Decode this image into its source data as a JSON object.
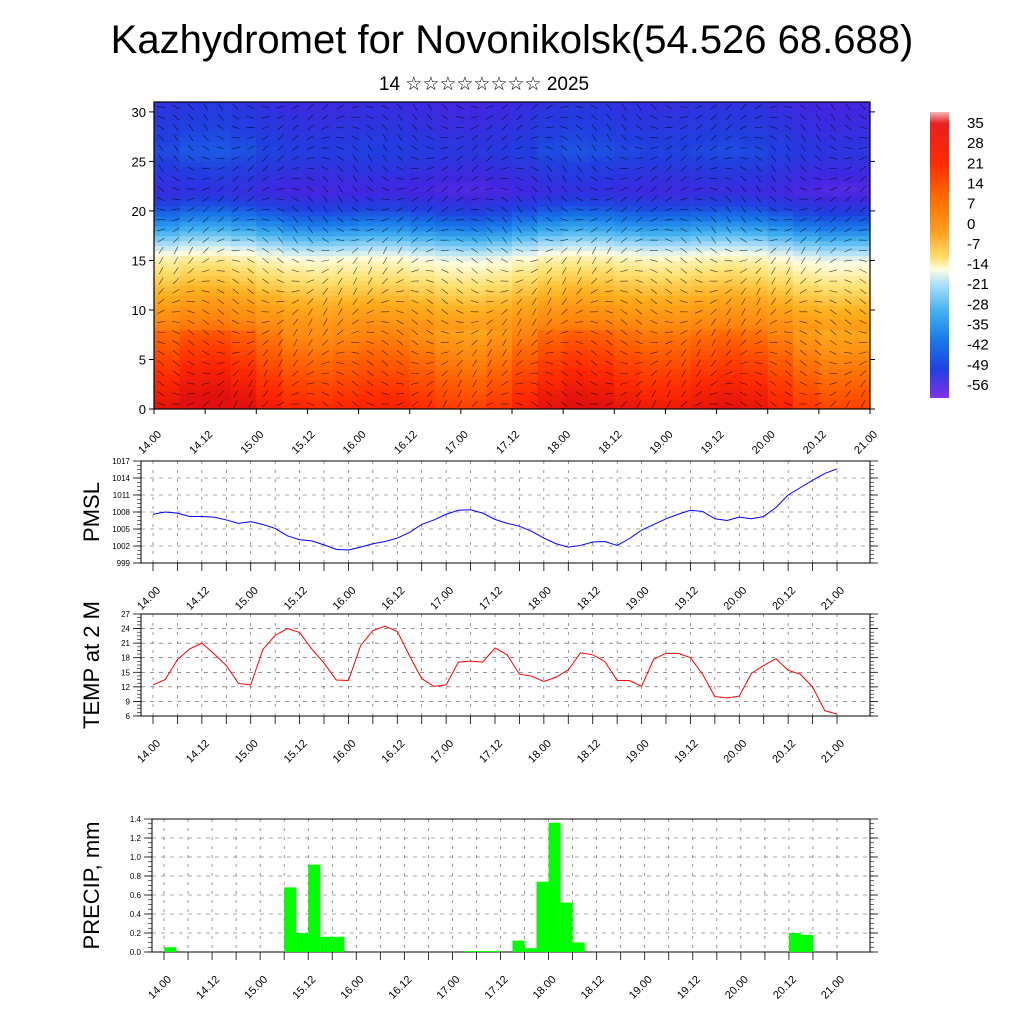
{
  "title": "Kazhydromet for Novonikolsk(54.526 68.688)",
  "subtitle": "14 ☆☆☆☆☆☆☆☆ 2025",
  "chart_data": [
    {
      "type": "heatmap",
      "title": "",
      "x_tick_labels": [
        "14.00",
        "14.12",
        "15.00",
        "15.12",
        "16.00",
        "16.12",
        "17.00",
        "17.12",
        "18.00",
        "18.12",
        "19.00",
        "19.12",
        "20.00",
        "20.12",
        "21.00"
      ],
      "y_ticks": [
        0,
        5,
        10,
        15,
        20,
        25,
        30
      ],
      "ylim": [
        0,
        31
      ],
      "colorbar_labels": [
        "35",
        "28",
        "21",
        "14",
        "7",
        "0",
        "-7",
        "-14",
        "-21",
        "-28",
        "-35",
        "-42",
        "-49",
        "-56"
      ],
      "colorbar_colors": [
        "#f0b7b7",
        "#e01010",
        "#ff2a00",
        "#ff5a00",
        "#ff8a10",
        "#ffb020",
        "#ffe070",
        "#fffde0",
        "#b0e0f8",
        "#40b0f0",
        "#1878e8",
        "#2040e0",
        "#4020e0",
        "#8030e8"
      ],
      "overlay": "wind vectors",
      "vertical_bands_bottom_to_top": [
        {
          "z": 0,
          "temp": 24
        },
        {
          "z": 5,
          "temp": 14
        },
        {
          "z": 10,
          "temp": 3
        },
        {
          "z": 15,
          "temp": -12
        },
        {
          "z": 18,
          "temp": -30
        },
        {
          "z": 22,
          "temp": -50
        },
        {
          "z": 26,
          "temp": -42
        },
        {
          "z": 31,
          "temp": -48
        }
      ]
    },
    {
      "type": "line",
      "ylabel": "PMSL",
      "x_tick_labels": [
        "14.00",
        "14.12",
        "15.00",
        "15.12",
        "16.00",
        "16.12",
        "17.00",
        "17.12",
        "18.00",
        "18.12",
        "19.00",
        "19.12",
        "20.00",
        "20.12",
        "21.00"
      ],
      "y_ticks": [
        999,
        1002,
        1005,
        1008,
        1011,
        1014,
        1017
      ],
      "ylim": [
        999,
        1017
      ],
      "color": "#0000ff",
      "x_hours": [
        0,
        3,
        6,
        9,
        12,
        15,
        18,
        21,
        24,
        27,
        30,
        33,
        36,
        39,
        42,
        45,
        48,
        51,
        54,
        57,
        60,
        63,
        66,
        69,
        72,
        75,
        78,
        81,
        84,
        87,
        90,
        93,
        96,
        99,
        102,
        105,
        108,
        111,
        114,
        117,
        120,
        123,
        126,
        129,
        132,
        135,
        138,
        141,
        144,
        147,
        150,
        153,
        156,
        159,
        162,
        165,
        168
      ],
      "values": [
        1007.6,
        1008.0,
        1007.8,
        1007.2,
        1007.2,
        1007.1,
        1006.6,
        1006.0,
        1006.3,
        1005.8,
        1005.1,
        1003.8,
        1003.1,
        1002.9,
        1002.2,
        1001.4,
        1001.3,
        1001.8,
        1002.4,
        1002.8,
        1003.4,
        1004.4,
        1005.8,
        1006.6,
        1007.6,
        1008.3,
        1008.4,
        1007.8,
        1006.7,
        1006.0,
        1005.5,
        1004.6,
        1003.4,
        1002.4,
        1001.8,
        1002.1,
        1002.7,
        1002.8,
        1002.1,
        1003.3,
        1004.8,
        1005.8,
        1006.8,
        1007.6,
        1008.3,
        1008.1,
        1006.8,
        1006.5,
        1007.1,
        1006.8,
        1007.2,
        1008.8,
        1011.0,
        1012.3,
        1013.6,
        1014.8,
        1015.6
      ]
    },
    {
      "type": "line",
      "ylabel": "TEMP at 2 M",
      "x_tick_labels": [
        "14.00",
        "14.12",
        "15.00",
        "15.12",
        "16.00",
        "16.12",
        "17.00",
        "17.12",
        "18.00",
        "18.12",
        "19.00",
        "19.12",
        "20.00",
        "20.12",
        "21.00"
      ],
      "y_ticks": [
        6,
        9,
        12,
        15,
        18,
        21,
        24,
        27
      ],
      "ylim": [
        6,
        27
      ],
      "color": "#ff0000",
      "x_hours": [
        0,
        3,
        6,
        9,
        12,
        15,
        18,
        21,
        24,
        27,
        30,
        33,
        36,
        39,
        42,
        45,
        48,
        51,
        54,
        57,
        60,
        63,
        66,
        69,
        72,
        75,
        78,
        81,
        84,
        87,
        90,
        93,
        96,
        99,
        102,
        105,
        108,
        111,
        114,
        117,
        120,
        123,
        126,
        129,
        132,
        135,
        138,
        141,
        144,
        147,
        150,
        153,
        156,
        159,
        162,
        165,
        168
      ],
      "values": [
        12.4,
        13.5,
        17.6,
        19.8,
        21.0,
        18.8,
        16.4,
        12.7,
        12.4,
        19.7,
        22.6,
        24.0,
        23.2,
        19.8,
        16.9,
        13.4,
        13.3,
        20.5,
        23.6,
        24.5,
        23.4,
        18.4,
        13.7,
        12.1,
        12.4,
        17.1,
        17.3,
        17.1,
        20.0,
        18.6,
        14.6,
        14.2,
        13.1,
        14.0,
        15.5,
        19.0,
        18.6,
        17.2,
        13.3,
        13.3,
        12.1,
        17.7,
        18.9,
        18.9,
        18.0,
        14.6,
        10.0,
        9.7,
        10.1,
        14.8,
        16.4,
        17.8,
        15.4,
        14.6,
        12.0,
        7.1,
        6.4
      ]
    },
    {
      "type": "bar",
      "ylabel": "PRECIP, mm",
      "x_tick_labels": [
        "14.00",
        "14.12",
        "15.00",
        "15.12",
        "16.00",
        "16.12",
        "17.00",
        "17.12",
        "18.00",
        "18.12",
        "19.00",
        "19.12",
        "20.00",
        "20.12",
        "21.00"
      ],
      "y_ticks": [
        "0.0",
        "0.2",
        "0.4",
        "0.6",
        "0.8",
        "1.0",
        "1.2",
        "1.4"
      ],
      "ylim": [
        0,
        1.4
      ],
      "color": "#00ff00",
      "bars_start_hour": [
        0,
        30,
        33,
        36,
        39,
        42,
        75,
        78,
        81,
        87,
        90,
        93,
        96,
        99,
        102,
        105,
        156,
        159
      ],
      "values": [
        0.05,
        0.68,
        0.2,
        0.92,
        0.16,
        0.16,
        0.01,
        0.01,
        0.01,
        0.12,
        0.04,
        0.74,
        1.36,
        0.52,
        0.1,
        0.0,
        0.2,
        0.18
      ]
    }
  ]
}
